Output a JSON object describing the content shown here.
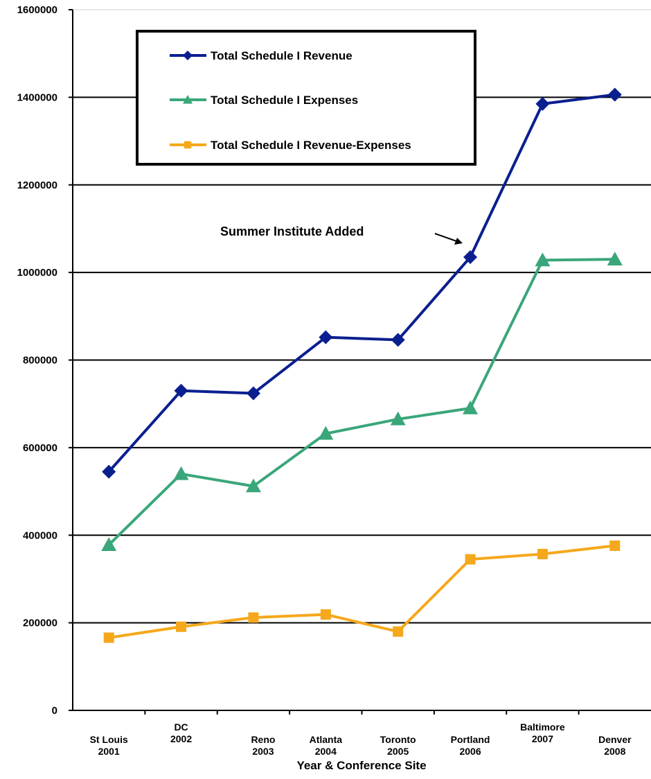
{
  "chart_data": {
    "type": "line",
    "xlabel": "Year & Conference Site",
    "ylabel": "",
    "ylim": [
      0,
      1600000
    ],
    "yticks": [
      "0",
      "200000",
      "400000",
      "600000",
      "800000",
      "1000000",
      "1200000",
      "1400000",
      "1600000"
    ],
    "categories": [
      [
        "St Louis",
        "2001"
      ],
      [
        "DC",
        "2002"
      ],
      [
        "Reno",
        "2003"
      ],
      [
        "Atlanta",
        "2004"
      ],
      [
        "Toronto",
        "2005"
      ],
      [
        "Portland",
        "2006"
      ],
      [
        "Baltimore",
        "2007"
      ],
      [
        "Denver",
        "2008"
      ]
    ],
    "grid": true,
    "legend_position": "top-left",
    "series": [
      {
        "name": "Total Schedule I Revenue",
        "color": "#0a1f8f",
        "marker": "diamond",
        "values": [
          545000,
          730000,
          724000,
          852000,
          846000,
          1035000,
          1385000,
          1406000
        ]
      },
      {
        "name": "Total Schedule I Expenses",
        "color": "#3aa67a",
        "marker": "triangle",
        "values": [
          378000,
          540000,
          512000,
          632000,
          665000,
          690000,
          1028000,
          1030000
        ]
      },
      {
        "name": "Total Schedule I Revenue-Expenses",
        "color": "#f5a81c",
        "marker": "square",
        "values": [
          166000,
          191000,
          212000,
          219000,
          180000,
          345000,
          357000,
          376000
        ]
      }
    ],
    "annotation": {
      "text": "Summer Institute Added"
    }
  }
}
